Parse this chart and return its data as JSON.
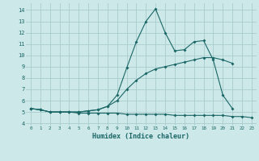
{
  "xlabel": "Humidex (Indice chaleur)",
  "bg_color": "#cce8e8",
  "grid_color": "#aacccc",
  "line_color": "#1a6666",
  "xlim": [
    -0.5,
    23.5
  ],
  "ylim": [
    3.8,
    14.6
  ],
  "yticks": [
    4,
    5,
    6,
    7,
    8,
    9,
    10,
    11,
    12,
    13,
    14
  ],
  "xticks": [
    0,
    1,
    2,
    3,
    4,
    5,
    6,
    7,
    8,
    9,
    10,
    11,
    12,
    13,
    14,
    15,
    16,
    17,
    18,
    19,
    20,
    21,
    22,
    23
  ],
  "line1_x": [
    0,
    1,
    2,
    3,
    4,
    5,
    6,
    7,
    8,
    9,
    10,
    11,
    12,
    13,
    14,
    15,
    16,
    17,
    18,
    19,
    20,
    21,
    22,
    23
  ],
  "line1_y": [
    5.3,
    5.2,
    5.0,
    5.0,
    5.0,
    4.9,
    4.9,
    4.9,
    4.9,
    4.9,
    4.8,
    4.8,
    4.8,
    4.8,
    4.8,
    4.7,
    4.7,
    4.7,
    4.7,
    4.7,
    4.7,
    4.6,
    4.6,
    4.5
  ],
  "line2_x": [
    0,
    1,
    2,
    3,
    4,
    5,
    6,
    7,
    8,
    9,
    10,
    11,
    12,
    13,
    14,
    15,
    16,
    17,
    18,
    19,
    20,
    21,
    22,
    23
  ],
  "line2_y": [
    5.3,
    5.2,
    5.0,
    5.0,
    5.0,
    5.0,
    5.1,
    5.2,
    5.5,
    6.0,
    7.0,
    7.8,
    8.4,
    8.8,
    9.0,
    9.2,
    9.4,
    9.6,
    9.8,
    9.8,
    9.6,
    9.3,
    null,
    null
  ],
  "line3_x": [
    0,
    1,
    2,
    3,
    4,
    5,
    6,
    7,
    8,
    9,
    10,
    11,
    12,
    13,
    14,
    15,
    16,
    17,
    18,
    19,
    20,
    21,
    22,
    23
  ],
  "line3_y": [
    5.3,
    5.2,
    5.0,
    5.0,
    5.0,
    5.0,
    5.1,
    5.2,
    5.5,
    6.5,
    8.9,
    11.2,
    13.0,
    14.1,
    12.0,
    10.4,
    10.5,
    11.2,
    11.3,
    9.6,
    6.5,
    5.3,
    null,
    null
  ],
  "marker": "D",
  "markersize": 2.0,
  "linewidth": 0.8
}
